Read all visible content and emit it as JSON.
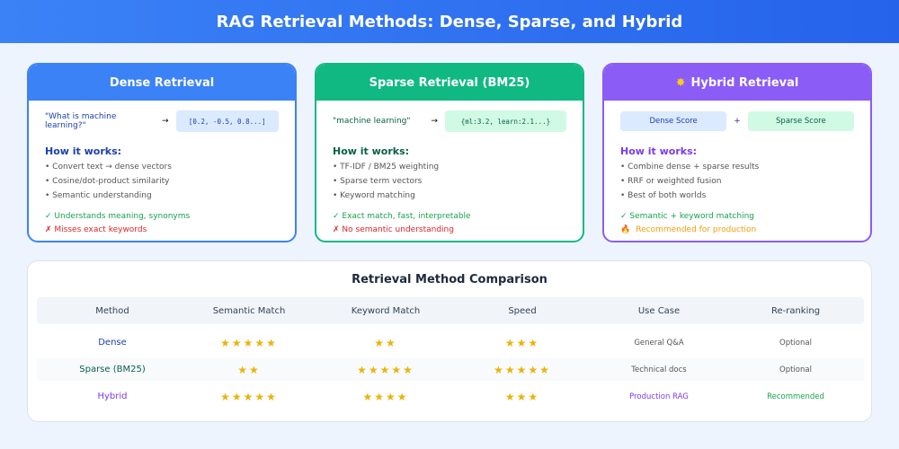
{
  "title": "RAG Retrieval Methods: Dense, Sparse, and Hybrid",
  "colors": {
    "dense": "#3b82f6",
    "sparse": "#10b981",
    "hybrid": "#8b5cf6",
    "star": "#eab308"
  },
  "cards": {
    "dense": {
      "title": "Dense Retrieval",
      "query": "\"What is machine learning?\"",
      "arrow": "→",
      "vector": "[0.2, -0.5, 0.8...]",
      "how": "How it works:",
      "items": [
        "• Convert text → dense vectors",
        "• Cosine/dot-product similarity",
        "• Semantic understanding"
      ],
      "pro": "✓ Understands meaning, synonyms",
      "con": "✗ Misses exact keywords"
    },
    "sparse": {
      "title": "Sparse Retrieval (BM25)",
      "query": "\"machine learning\"",
      "arrow": "→",
      "vector": "{ml:3.2, learn:2.1...}",
      "how": "How it works:",
      "items": [
        "• TF-IDF / BM25 weighting",
        "• Sparse term vectors",
        "• Keyword matching"
      ],
      "pro": "✓ Exact match, fast, interpretable",
      "con": "✗ No semantic understanding"
    },
    "hybrid": {
      "icon": "sparkle-icon",
      "title": "Hybrid Retrieval",
      "dense_box": "Dense Score",
      "plus": "+",
      "sparse_box": "Sparse Score",
      "how": "How it works:",
      "items": [
        "• Combine dense + sparse results",
        "• RRF or weighted fusion",
        "• Best of both worlds"
      ],
      "pro": "✓ Semantic + keyword matching",
      "con_icon": "fire-icon",
      "con": "Recommended for production"
    }
  },
  "table": {
    "title": "Retrieval Method Comparison",
    "headers": [
      "Method",
      "Semantic Match",
      "Keyword Match",
      "Speed",
      "Use Case",
      "Re-ranking"
    ],
    "rows": [
      {
        "method": "Dense",
        "semantic": 5,
        "keyword": 2,
        "speed": 3,
        "use_case": "General Q&A",
        "reranking": "Optional"
      },
      {
        "method": "Sparse (BM25)",
        "semantic": 2,
        "keyword": 5,
        "speed": 5,
        "use_case": "Technical docs",
        "reranking": "Optional"
      },
      {
        "method": "Hybrid",
        "semantic": 5,
        "keyword": 4,
        "speed": 3,
        "use_case": "Production RAG",
        "reranking": "Recommended"
      }
    ]
  }
}
